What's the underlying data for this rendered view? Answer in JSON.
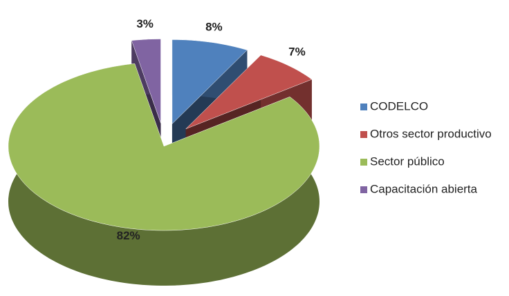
{
  "chart_data": {
    "type": "pie",
    "categories": [
      "CODELCO",
      "Otros sector productivo",
      "Sector público",
      "Capacitación abierta"
    ],
    "values": [
      8,
      7,
      82,
      3
    ],
    "value_labels": [
      "8%",
      "7%",
      "82%",
      "3%"
    ],
    "colors": [
      "#4f81bd",
      "#c0504d",
      "#9bbb59",
      "#8064a2"
    ],
    "legend": "right"
  }
}
